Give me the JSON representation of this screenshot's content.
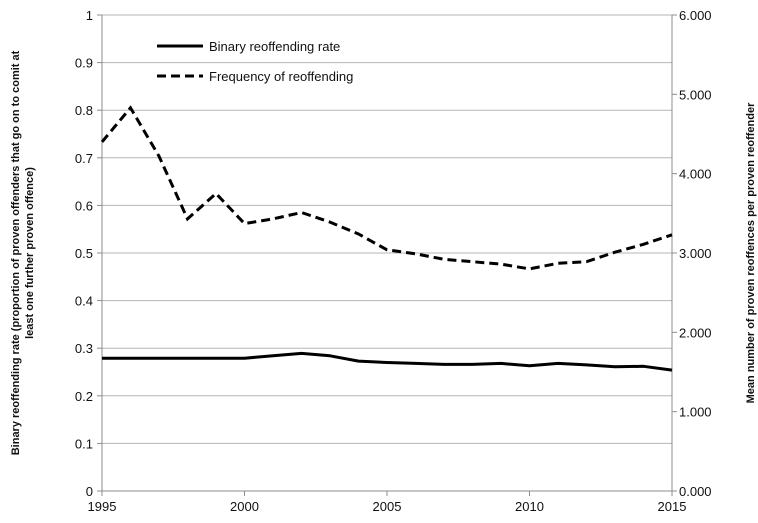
{
  "chart_data": {
    "type": "line",
    "title": "",
    "x": [
      1995,
      1996,
      1997,
      1998,
      1999,
      2000,
      2001,
      2002,
      2003,
      2004,
      2005,
      2006,
      2007,
      2008,
      2009,
      2010,
      2011,
      2012,
      2013,
      2014,
      2015
    ],
    "xlim": [
      1995,
      2015
    ],
    "xticks": [
      "1995",
      "2000",
      "2005",
      "2010",
      "2015"
    ],
    "xlabel": "",
    "ylabel_left_lines": [
      "Binary reoffending rate (proportion of proven offenders that go on to comit at",
      "least one further proven offence)"
    ],
    "ylabel_right": "Mean number of proven reoffences per proven reoffender",
    "ylim_left": [
      0,
      1
    ],
    "ylim_right": [
      0,
      6
    ],
    "yticks_left": [
      "0",
      "0.1",
      "0.2",
      "0.3",
      "0.4",
      "0.5",
      "0.6",
      "0.7",
      "0.8",
      "0.9",
      "1"
    ],
    "yticks_right": [
      "0.000",
      "1.000",
      "2.000",
      "3.000",
      "4.000",
      "5.000",
      "6.000"
    ],
    "grid": "horizontal",
    "legend_position": "top-left",
    "series": [
      {
        "name": "Binary reoffending rate",
        "axis": "left",
        "style": "solid",
        "values": [
          0.279,
          0.279,
          0.279,
          0.279,
          0.279,
          0.279,
          0.284,
          0.289,
          0.284,
          0.273,
          0.27,
          0.268,
          0.266,
          0.266,
          0.268,
          0.263,
          0.268,
          0.265,
          0.261,
          0.262,
          0.254
        ]
      },
      {
        "name": "Frequency of reoffending",
        "axis": "right",
        "style": "dashed",
        "values": [
          4.4,
          4.83,
          4.22,
          3.43,
          3.75,
          3.37,
          3.43,
          3.51,
          3.39,
          3.24,
          3.04,
          2.99,
          2.92,
          2.89,
          2.86,
          2.8,
          2.87,
          2.89,
          3.01,
          3.11,
          3.23
        ]
      }
    ]
  }
}
